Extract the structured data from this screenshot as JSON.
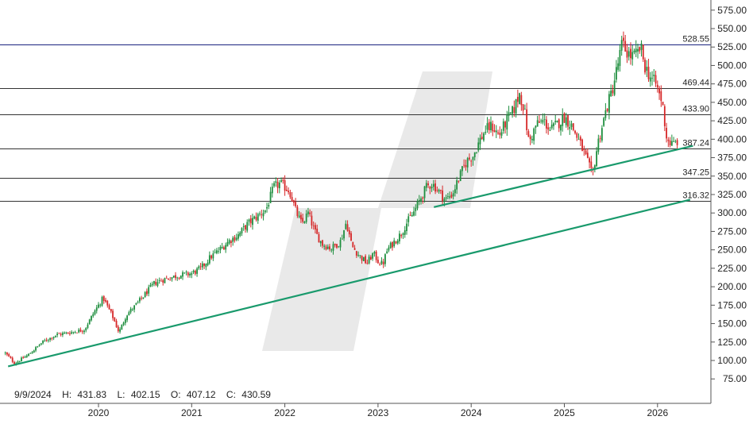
{
  "chart_data": {
    "type": "candlestick",
    "info": {
      "date": "9/9/2024",
      "high_label": "H:",
      "high": "431.83",
      "low_label": "L:",
      "low": "402.15",
      "open_label": "O:",
      "open": "407.12",
      "close_label": "C:",
      "close": "430.59"
    },
    "y_ticks": [
      "75.00",
      "100.00",
      "125.00",
      "150.00",
      "175.00",
      "200.00",
      "225.00",
      "250.00",
      "275.00",
      "300.00",
      "325.00",
      "350.00",
      "375.00",
      "400.00",
      "425.00",
      "450.00",
      "475.00",
      "500.00",
      "525.00",
      "550.00",
      "575.00"
    ],
    "x_ticks": [
      "2020",
      "2021",
      "2022",
      "2023",
      "2024",
      "2025",
      "2026"
    ],
    "x_range": [
      2019.0,
      2026.6
    ],
    "y_range": [
      50,
      590
    ],
    "levels": [
      {
        "value": 528.55,
        "label": "528.55",
        "color": "#1a237e"
      },
      {
        "value": 469.44,
        "label": "469.44",
        "color": "#333333"
      },
      {
        "value": 433.9,
        "label": "433.90",
        "color": "#333333"
      },
      {
        "value": 387.24,
        "label": "387.24",
        "color": "#333333"
      },
      {
        "value": 347.25,
        "label": "347.25",
        "color": "#333333"
      },
      {
        "value": 316.32,
        "label": "316.32",
        "color": "#333333"
      }
    ],
    "trendlines": [
      {
        "x1": 2019.03,
        "y1": 92,
        "x2": 2026.35,
        "y2": 318
      },
      {
        "x1": 2023.6,
        "y1": 308,
        "x2": 2026.38,
        "y2": 391
      }
    ],
    "colors": {
      "up": "#1e8e3e",
      "down": "#d62728",
      "trendline": "#199a6c",
      "grid": "#555555",
      "watermark": "#e9e9e9"
    },
    "close_path": [
      [
        2019.0,
        110
      ],
      [
        2019.1,
        96
      ],
      [
        2019.25,
        108
      ],
      [
        2019.4,
        125
      ],
      [
        2019.55,
        135
      ],
      [
        2019.7,
        138
      ],
      [
        2019.85,
        142
      ],
      [
        2019.95,
        165
      ],
      [
        2020.05,
        185
      ],
      [
        2020.15,
        160
      ],
      [
        2020.22,
        138
      ],
      [
        2020.3,
        162
      ],
      [
        2020.4,
        175
      ],
      [
        2020.5,
        190
      ],
      [
        2020.6,
        205
      ],
      [
        2020.7,
        210
      ],
      [
        2020.85,
        215
      ],
      [
        2021.0,
        218
      ],
      [
        2021.1,
        225
      ],
      [
        2021.2,
        240
      ],
      [
        2021.3,
        250
      ],
      [
        2021.4,
        262
      ],
      [
        2021.5,
        270
      ],
      [
        2021.6,
        285
      ],
      [
        2021.7,
        295
      ],
      [
        2021.8,
        305
      ],
      [
        2021.88,
        335
      ],
      [
        2021.95,
        340
      ],
      [
        2022.05,
        330
      ],
      [
        2022.12,
        302
      ],
      [
        2022.18,
        285
      ],
      [
        2022.25,
        300
      ],
      [
        2022.32,
        275
      ],
      [
        2022.4,
        258
      ],
      [
        2022.5,
        252
      ],
      [
        2022.6,
        262
      ],
      [
        2022.66,
        288
      ],
      [
        2022.72,
        255
      ],
      [
        2022.8,
        242
      ],
      [
        2022.88,
        232
      ],
      [
        2022.95,
        245
      ],
      [
        2023.0,
        235
      ],
      [
        2023.05,
        230
      ],
      [
        2023.1,
        250
      ],
      [
        2023.18,
        262
      ],
      [
        2023.25,
        272
      ],
      [
        2023.3,
        285
      ],
      [
        2023.38,
        300
      ],
      [
        2023.45,
        318
      ],
      [
        2023.52,
        335
      ],
      [
        2023.58,
        340
      ],
      [
        2023.65,
        330
      ],
      [
        2023.72,
        318
      ],
      [
        2023.8,
        326
      ],
      [
        2023.87,
        348
      ],
      [
        2023.95,
        370
      ],
      [
        2024.02,
        378
      ],
      [
        2024.08,
        395
      ],
      [
        2024.15,
        412
      ],
      [
        2024.22,
        418
      ],
      [
        2024.3,
        405
      ],
      [
        2024.38,
        425
      ],
      [
        2024.45,
        438
      ],
      [
        2024.52,
        462
      ],
      [
        2024.57,
        440
      ],
      [
        2024.62,
        395
      ],
      [
        2024.7,
        420
      ],
      [
        2024.78,
        425
      ],
      [
        2024.85,
        412
      ],
      [
        2024.92,
        420
      ],
      [
        2025.0,
        430
      ],
      [
        2025.07,
        420
      ],
      [
        2025.13,
        405
      ],
      [
        2025.2,
        385
      ],
      [
        2025.26,
        365
      ],
      [
        2025.3,
        350
      ],
      [
        2025.36,
        395
      ],
      [
        2025.45,
        440
      ],
      [
        2025.52,
        470
      ],
      [
        2025.58,
        505
      ],
      [
        2025.62,
        530
      ],
      [
        2025.66,
        520
      ],
      [
        2025.72,
        512
      ],
      [
        2025.78,
        515
      ],
      [
        2025.82,
        525
      ],
      [
        2025.86,
        500
      ],
      [
        2025.92,
        485
      ],
      [
        2025.98,
        475
      ],
      [
        2026.05,
        450
      ],
      [
        2026.1,
        400
      ],
      [
        2026.16,
        392
      ],
      [
        2026.22,
        398
      ]
    ]
  }
}
